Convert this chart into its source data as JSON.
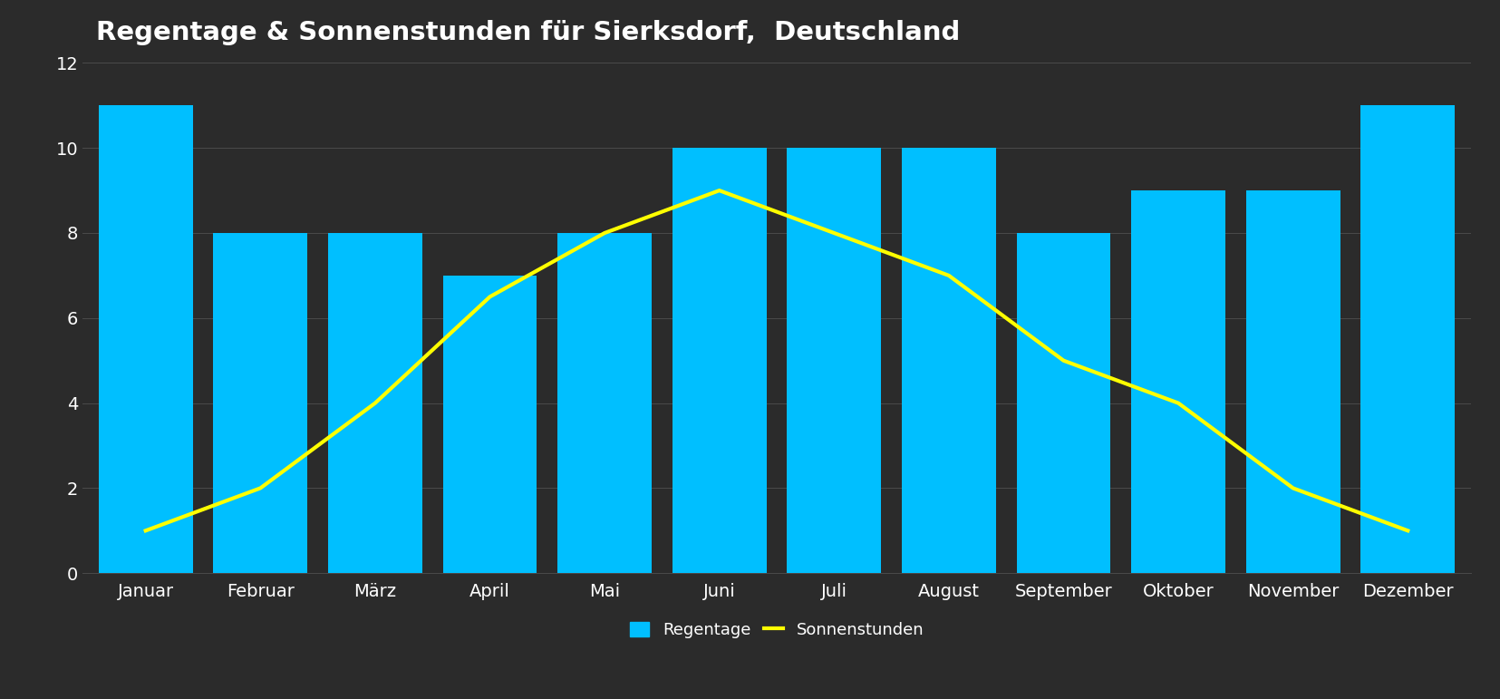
{
  "title": "Regentage & Sonnenstunden für Sierksdorf,  Deutschland",
  "months": [
    "Januar",
    "Februar",
    "März",
    "April",
    "Mai",
    "Juni",
    "Juli",
    "August",
    "September",
    "Oktober",
    "November",
    "Dezember"
  ],
  "regentage": [
    11,
    8,
    8,
    7,
    8,
    10,
    10,
    10,
    8,
    9,
    9,
    11
  ],
  "sonnenstunden": [
    1,
    2,
    4,
    6.5,
    8,
    9,
    8,
    7,
    5,
    4,
    2,
    1
  ],
  "bar_color": "#00BFFF",
  "line_color": "#FFFF00",
  "background_color": "#2b2b2b",
  "axes_background_color": "#2b2b2b",
  "title_color": "#ffffff",
  "tick_color": "#ffffff",
  "grid_color": "#4a4a4a",
  "ylim": [
    0,
    12
  ],
  "yticks": [
    0,
    2,
    4,
    6,
    8,
    10,
    12
  ],
  "legend_regentage": "Regentage",
  "legend_sonnenstunden": "Sonnenstunden",
  "title_fontsize": 21,
  "tick_fontsize": 14,
  "legend_fontsize": 13,
  "line_width": 3.0,
  "bar_width": 0.82
}
